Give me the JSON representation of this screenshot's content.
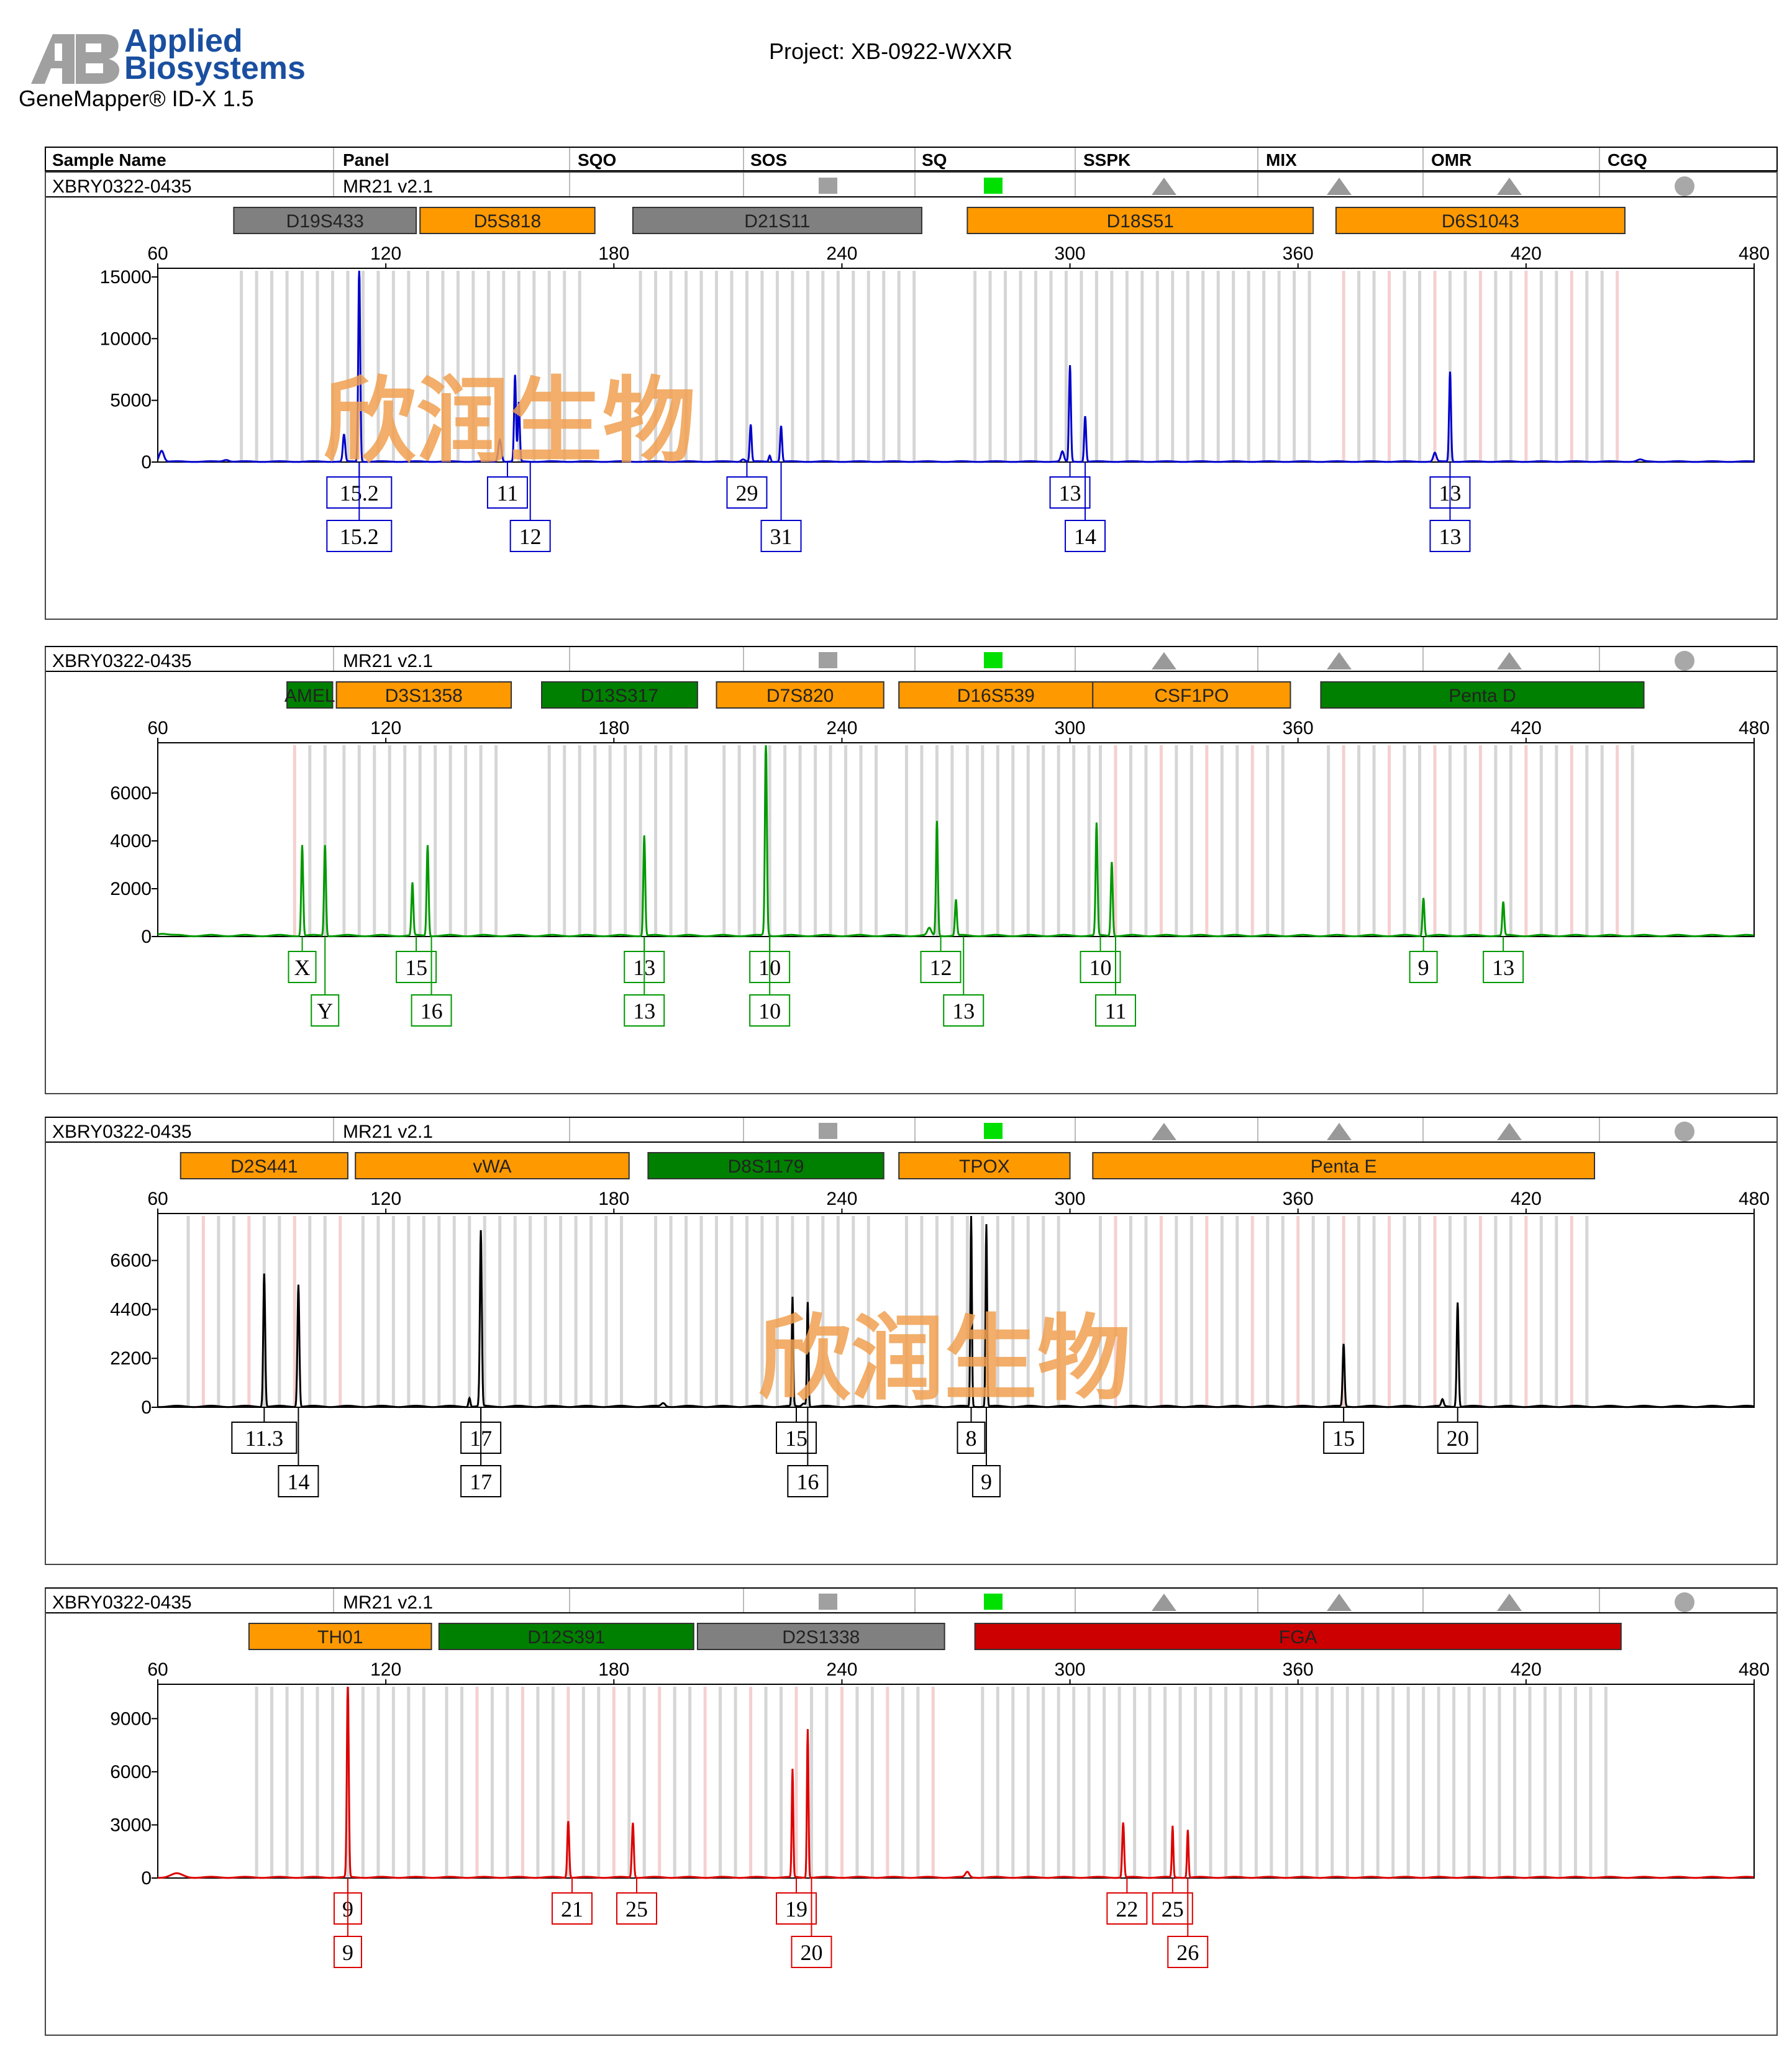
{
  "header": {
    "brand_line1": "Applied",
    "brand_line2": "Biosystems",
    "software": "GeneMapper® ID-X  1.5",
    "project": "Project: XB-0922-WXXR"
  },
  "table_header": [
    "Sample Name",
    "Panel",
    "SQO",
    "SOS",
    "SQ",
    "SSPK",
    "MIX",
    "OMR",
    "CGQ"
  ],
  "watermark": "欣润生物",
  "panels": [
    {
      "sample": "XBRY0322-0435",
      "panel_name": "MR21  v2.1",
      "color": "#0000cc",
      "markers": [
        {
          "name": "D19S433",
          "color": "#808080",
          "start": 80,
          "end": 128
        },
        {
          "name": "D5S818",
          "color": "#ff9900",
          "start": 129,
          "end": 175
        },
        {
          "name": "D21S11",
          "color": "#808080",
          "start": 185,
          "end": 261
        },
        {
          "name": "D18S51",
          "color": "#ff9900",
          "start": 273,
          "end": 364
        },
        {
          "name": "D6S1043",
          "color": "#ff9900",
          "start": 370,
          "end": 446
        }
      ],
      "yticks": [
        0,
        5000,
        10000,
        15000
      ],
      "ymax": 15500,
      "peaks": [
        [
          61,
          900,
          1.2
        ],
        [
          78,
          150,
          1.5
        ],
        [
          109,
          2200,
          0.6
        ],
        [
          113,
          16000,
          0.5
        ],
        [
          150,
          1800,
          0.8
        ],
        [
          154,
          7000,
          0.5
        ],
        [
          155,
          4800,
          0.5
        ],
        [
          214,
          200,
          1
        ],
        [
          216,
          3000,
          0.5
        ],
        [
          221,
          500,
          0.5
        ],
        [
          224,
          2900,
          0.5
        ],
        [
          298,
          800,
          0.8
        ],
        [
          300,
          7800,
          0.5
        ],
        [
          304,
          3700,
          0.5
        ],
        [
          396,
          700,
          0.8
        ],
        [
          400,
          7300,
          0.5
        ],
        [
          450,
          150,
          1.5
        ]
      ],
      "alleles": [
        {
          "label": "15.2",
          "x": 113,
          "row": 0
        },
        {
          "label": "15.2",
          "x": 113,
          "row": 1
        },
        {
          "label": "11",
          "x": 152,
          "row": 0
        },
        {
          "label": "12",
          "x": 158,
          "row": 1
        },
        {
          "label": "29",
          "x": 215,
          "row": 0
        },
        {
          "label": "31",
          "x": 224,
          "row": 1
        },
        {
          "label": "13",
          "x": 300,
          "row": 0
        },
        {
          "label": "14",
          "x": 304,
          "row": 1
        },
        {
          "label": "13",
          "x": 400,
          "row": 0
        },
        {
          "label": "13",
          "x": 400,
          "row": 1
        }
      ]
    },
    {
      "sample": "XBRY0322-0435",
      "panel_name": "MR21  v2.1",
      "color": "#009900",
      "markers": [
        {
          "name": "AMEL",
          "color": "#008000",
          "start": 94,
          "end": 106
        },
        {
          "name": "D3S1358",
          "color": "#ff9900",
          "start": 107,
          "end": 153
        },
        {
          "name": "D13S317",
          "color": "#008000",
          "start": 161,
          "end": 202
        },
        {
          "name": "D7S820",
          "color": "#ff9900",
          "start": 207,
          "end": 251
        },
        {
          "name": "D16S539",
          "color": "#ff9900",
          "start": 255,
          "end": 306
        },
        {
          "name": "CSF1PO",
          "color": "#ff9900",
          "start": 306,
          "end": 358
        },
        {
          "name": "Penta D",
          "color": "#008000",
          "start": 366,
          "end": 451
        }
      ],
      "yticks": [
        0,
        2000,
        4000,
        6000
      ],
      "ymax": 8000,
      "peaks": [
        [
          61,
          100,
          3
        ],
        [
          98,
          3800,
          0.5
        ],
        [
          104,
          3800,
          0.5
        ],
        [
          127,
          2200,
          0.5
        ],
        [
          131,
          3800,
          0.5
        ],
        [
          188,
          4200,
          0.5
        ],
        [
          220,
          200,
          1
        ],
        [
          220,
          8000,
          0.5
        ],
        [
          263,
          300,
          1
        ],
        [
          265,
          4800,
          0.5
        ],
        [
          270,
          1500,
          0.5
        ],
        [
          307,
          4700,
          0.5
        ],
        [
          311,
          3100,
          0.5
        ],
        [
          393,
          1600,
          0.5
        ],
        [
          414,
          1400,
          0.5
        ]
      ],
      "alleles": [
        {
          "label": "X",
          "x": 98,
          "row": 0
        },
        {
          "label": "Y",
          "x": 104,
          "row": 1
        },
        {
          "label": "15",
          "x": 128,
          "row": 0
        },
        {
          "label": "16",
          "x": 132,
          "row": 1
        },
        {
          "label": "13",
          "x": 188,
          "row": 0
        },
        {
          "label": "13",
          "x": 188,
          "row": 1
        },
        {
          "label": "10",
          "x": 221,
          "row": 0
        },
        {
          "label": "10",
          "x": 221,
          "row": 1
        },
        {
          "label": "12",
          "x": 266,
          "row": 0
        },
        {
          "label": "13",
          "x": 272,
          "row": 1
        },
        {
          "label": "10",
          "x": 308,
          "row": 0
        },
        {
          "label": "11",
          "x": 312,
          "row": 1
        },
        {
          "label": "9",
          "x": 393,
          "row": 0
        },
        {
          "label": "13",
          "x": 414,
          "row": 0
        }
      ]
    },
    {
      "sample": "XBRY0322-0435",
      "panel_name": "MR21  v2.1",
      "color": "#000000",
      "markers": [
        {
          "name": "D2S441",
          "color": "#ff9900",
          "start": 66,
          "end": 110
        },
        {
          "name": "vWA",
          "color": "#ff9900",
          "start": 112,
          "end": 184
        },
        {
          "name": "D8S1179",
          "color": "#008000",
          "start": 189,
          "end": 251
        },
        {
          "name": "TPOX",
          "color": "#ff9900",
          "start": 255,
          "end": 300
        },
        {
          "name": "Penta E",
          "color": "#ff9900",
          "start": 306,
          "end": 438
        }
      ],
      "yticks": [
        0,
        2200,
        4400,
        6600
      ],
      "ymax": 8600,
      "peaks": [
        [
          88,
          6000,
          0.5
        ],
        [
          97,
          5500,
          0.5
        ],
        [
          142,
          400,
          0.5
        ],
        [
          145,
          7900,
          0.5
        ],
        [
          193,
          150,
          1
        ],
        [
          230,
          150,
          1
        ],
        [
          227,
          4900,
          0.4
        ],
        [
          231,
          4700,
          0.4
        ],
        [
          274,
          8600,
          0.4
        ],
        [
          278,
          8200,
          0.4
        ],
        [
          372,
          2800,
          0.5
        ],
        [
          398,
          300,
          0.6
        ],
        [
          402,
          4700,
          0.5
        ]
      ],
      "alleles": [
        {
          "label": "11.3",
          "x": 88,
          "row": 0
        },
        {
          "label": "14",
          "x": 97,
          "row": 1
        },
        {
          "label": "17",
          "x": 145,
          "row": 0
        },
        {
          "label": "17",
          "x": 145,
          "row": 1
        },
        {
          "label": "15",
          "x": 228,
          "row": 0
        },
        {
          "label": "16",
          "x": 231,
          "row": 1
        },
        {
          "label": "8",
          "x": 274,
          "row": 0
        },
        {
          "label": "9",
          "x": 278,
          "row": 1
        },
        {
          "label": "15",
          "x": 372,
          "row": 0
        },
        {
          "label": "20",
          "x": 402,
          "row": 0
        }
      ]
    },
    {
      "sample": "XBRY0322-0435",
      "panel_name": "MR21  v2.1",
      "color": "#dd0000",
      "markers": [
        {
          "name": "TH01",
          "color": "#ff9900",
          "start": 84,
          "end": 132
        },
        {
          "name": "D12S391",
          "color": "#008000",
          "start": 134,
          "end": 201
        },
        {
          "name": "D2S1338",
          "color": "#808080",
          "start": 202,
          "end": 267
        },
        {
          "name": "FGA",
          "color": "#cc0000",
          "start": 275,
          "end": 445
        }
      ],
      "yticks": [
        0,
        3000,
        6000,
        9000
      ],
      "ymax": 10800,
      "peaks": [
        [
          65,
          200,
          3
        ],
        [
          110,
          10800,
          0.5
        ],
        [
          168,
          3200,
          0.5
        ],
        [
          185,
          3100,
          0.5
        ],
        [
          227,
          6100,
          0.4
        ],
        [
          231,
          8400,
          0.4
        ],
        [
          273,
          300,
          1
        ],
        [
          314,
          3100,
          0.5
        ],
        [
          327,
          2900,
          0.4
        ],
        [
          331,
          2700,
          0.4
        ]
      ],
      "alleles": [
        {
          "label": "9",
          "x": 110,
          "row": 0
        },
        {
          "label": "9",
          "x": 110,
          "row": 1
        },
        {
          "label": "21",
          "x": 169,
          "row": 0
        },
        {
          "label": "25",
          "x": 186,
          "row": 0
        },
        {
          "label": "19",
          "x": 228,
          "row": 0
        },
        {
          "label": "20",
          "x": 232,
          "row": 1
        },
        {
          "label": "22",
          "x": 315,
          "row": 0
        },
        {
          "label": "25",
          "x": 327,
          "row": 0
        },
        {
          "label": "26",
          "x": 331,
          "row": 1
        }
      ]
    }
  ],
  "chart_data": {
    "type": "line",
    "title": "Project: XB-0922-WXXR",
    "xlabel": "",
    "ylabel": "",
    "xlim": [
      60,
      480
    ],
    "xticks": [
      60,
      120,
      180,
      240,
      300,
      360,
      420,
      480
    ],
    "series": [
      {
        "name": "",
        "values": "see panels[].peaks — [size_bp, RFU, width]"
      }
    ]
  }
}
